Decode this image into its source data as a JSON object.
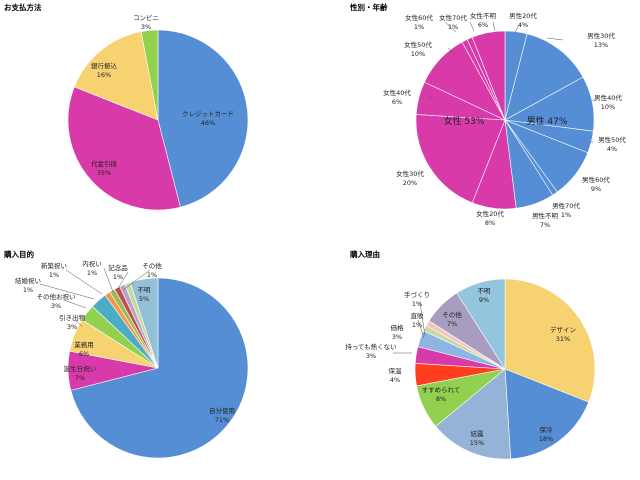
{
  "chart_data": [
    {
      "type": "pie",
      "title": "お支払方法",
      "slices": [
        {
          "label": "クレジットカード",
          "pct": "46%",
          "value": 46,
          "color": "#558ed5"
        },
        {
          "label": "代金引換",
          "pct": "35%",
          "value": 35,
          "color": "#d83ba9"
        },
        {
          "label": "銀行振込",
          "pct": "16%",
          "value": 16,
          "color": "#f6d271"
        },
        {
          "label": "コンビニ",
          "pct": "3%",
          "value": 3,
          "color": "#92d050"
        }
      ]
    },
    {
      "type": "pie",
      "title": "性別・年齢",
      "inner_labels": [
        {
          "text": "男性 47%"
        },
        {
          "text": "女性 53%"
        }
      ],
      "slices": [
        {
          "label": "男性20代",
          "pct": "4%",
          "value": 4,
          "color": "#558ed5"
        },
        {
          "label": "男性30代",
          "pct": "13%",
          "value": 13,
          "color": "#558ed5"
        },
        {
          "label": "男性40代",
          "pct": "10%",
          "value": 10,
          "color": "#558ed5"
        },
        {
          "label": "男性50代",
          "pct": "4%",
          "value": 4,
          "color": "#558ed5"
        },
        {
          "label": "男性60代",
          "pct": "9%",
          "value": 9,
          "color": "#558ed5"
        },
        {
          "label": "男性70代",
          "pct": "1%",
          "value": 1,
          "color": "#558ed5"
        },
        {
          "label": "男性不明",
          "pct": "7%",
          "value": 7,
          "color": "#558ed5"
        },
        {
          "label": "女性20代",
          "pct": "8%",
          "value": 8,
          "color": "#d83ba9"
        },
        {
          "label": "女性30代",
          "pct": "20%",
          "value": 20,
          "color": "#d83ba9"
        },
        {
          "label": "女性40代",
          "pct": "6%",
          "value": 6,
          "color": "#d83ba9"
        },
        {
          "label": "女性50代",
          "pct": "10%",
          "value": 10,
          "color": "#d83ba9"
        },
        {
          "label": "女性60代",
          "pct": "1%",
          "value": 1,
          "color": "#d83ba9"
        },
        {
          "label": "女性70代",
          "pct": "1%",
          "value": 1,
          "color": "#d83ba9"
        },
        {
          "label": "女性不明",
          "pct": "6%",
          "value": 6,
          "color": "#d83ba9"
        }
      ]
    },
    {
      "type": "pie",
      "title": "購入目的",
      "slices": [
        {
          "label": "自分使用",
          "pct": "71%",
          "value": 71,
          "color": "#558ed5"
        },
        {
          "label": "誕生日祝い",
          "pct": "7%",
          "value": 7,
          "color": "#d83ba9"
        },
        {
          "label": "業務用",
          "pct": "6%",
          "value": 6,
          "color": "#f6d271"
        },
        {
          "label": "引き出物",
          "pct": "3%",
          "value": 3,
          "color": "#92d050"
        },
        {
          "label": "その他お祝い",
          "pct": "3%",
          "value": 3,
          "color": "#4bacc6"
        },
        {
          "label": "結婚祝い",
          "pct": "1%",
          "value": 1,
          "color": "#f79646"
        },
        {
          "label": "新築祝い",
          "pct": "1%",
          "value": 1,
          "color": "#9bbb59"
        },
        {
          "label": "内祝い",
          "pct": "1%",
          "value": 1,
          "color": "#c0504d"
        },
        {
          "label": "記念品",
          "pct": "1%",
          "value": 1,
          "color": "#b7a4c9"
        },
        {
          "label": "その他",
          "pct": "1%",
          "value": 1,
          "color": "#c6d9a0"
        },
        {
          "label": "不明",
          "pct": "5%",
          "value": 5,
          "color": "#93c0d6"
        }
      ]
    },
    {
      "type": "pie",
      "title": "購入理由",
      "slices": [
        {
          "label": "デザイン",
          "pct": "31%",
          "value": 31,
          "color": "#f6d271"
        },
        {
          "label": "保冷",
          "pct": "18%",
          "value": 18,
          "color": "#558ed5"
        },
        {
          "label": "結露",
          "pct": "15%",
          "value": 15,
          "color": "#95b3d7"
        },
        {
          "label": "すすめられて",
          "pct": "8%",
          "value": 8,
          "color": "#92d050"
        },
        {
          "label": "保温",
          "pct": "4%",
          "value": 4,
          "color": "#ff3d1f"
        },
        {
          "label": "持っても熱くない",
          "pct": "3%",
          "value": 3,
          "color": "#d83ba9"
        },
        {
          "label": "価格",
          "pct": "3%",
          "value": 3,
          "color": "#8db4e2"
        },
        {
          "label": "直販",
          "pct": "1%",
          "value": 1,
          "color": "#c6d9a0"
        },
        {
          "label": "手づくり",
          "pct": "1%",
          "value": 1,
          "color": "#f5c6c0"
        },
        {
          "label": "その他",
          "pct": "7%",
          "value": 7,
          "color": "#a89cc0"
        },
        {
          "label": "不明",
          "pct": "9%",
          "value": 9,
          "color": "#93c6dc"
        }
      ]
    }
  ]
}
